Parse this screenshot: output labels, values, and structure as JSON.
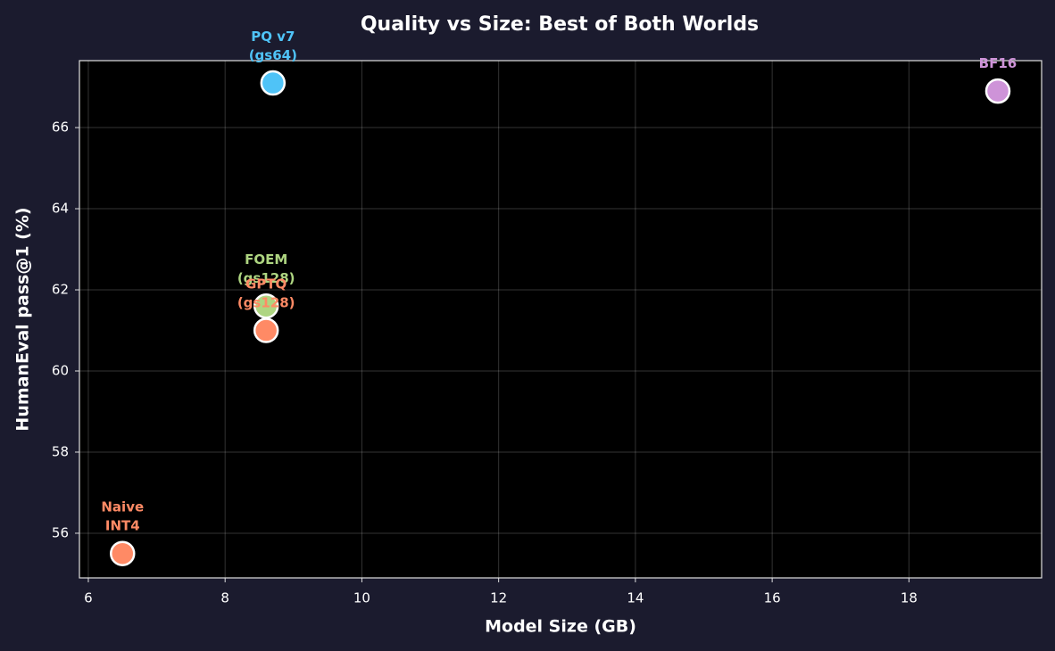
{
  "chart_data": {
    "type": "scatter",
    "title": "Quality vs Size: Best of Both Worlds",
    "x_label": "Model Size (GB)",
    "y_label": "HumanEval pass@1 (%)",
    "series": [
      {
        "name": "PQ v7\n(gs64)",
        "color": "#4fc3f7",
        "x": [
          8.7
        ],
        "values": [
          67.1
        ]
      },
      {
        "name": "BF16",
        "color": "#ce93d8",
        "x": [
          19.3
        ],
        "values": [
          66.9
        ]
      },
      {
        "name": "FOEM\n(gs128)",
        "color": "#aed581",
        "x": [
          8.6
        ],
        "values": [
          61.6
        ]
      },
      {
        "name": "GPTQ\n(gs128)",
        "color": "#ff8a65",
        "x": [
          8.6
        ],
        "values": [
          61.0
        ]
      },
      {
        "name": "Naive\nINT4",
        "color": "#ff8a65",
        "x": [
          6.5
        ],
        "values": [
          55.5
        ]
      }
    ],
    "xlim": [
      5.87,
      19.94
    ],
    "xticks": [
      6,
      8,
      10,
      12,
      14,
      16,
      18
    ],
    "ylim": [
      54.9,
      67.65
    ],
    "yticks": [
      56,
      58,
      60,
      62,
      64,
      66
    ],
    "grid": true
  }
}
